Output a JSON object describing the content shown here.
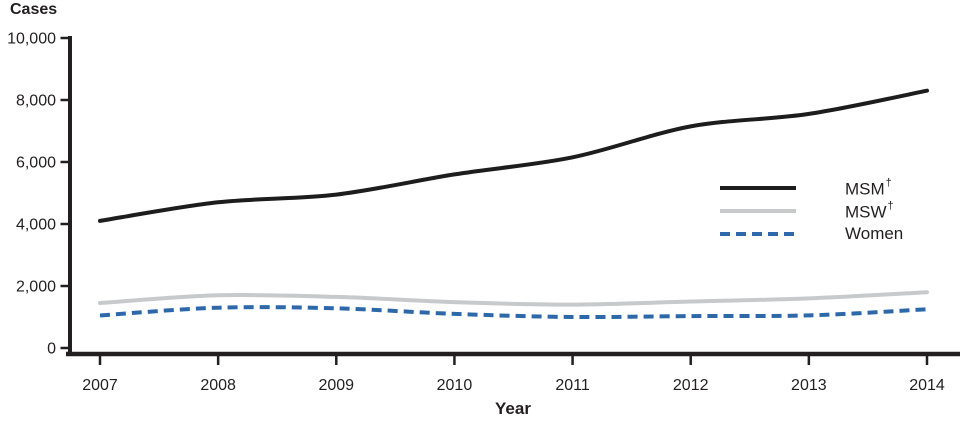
{
  "colors": {
    "axis": "#231f20",
    "text": "#231f20",
    "msm_line": "#1d1d1d",
    "msw_line": "#c8c9cb",
    "women_line": "#2d69aa"
  },
  "chart_data": {
    "type": "line",
    "title": "",
    "xlabel": "Year",
    "ylabel": "Cases",
    "categories": [
      "2007",
      "2008",
      "2009",
      "2010",
      "2011",
      "2012",
      "2013",
      "2014"
    ],
    "ylim": [
      0,
      10000
    ],
    "grid": false,
    "legend_position": "right-middle",
    "yticks": [
      {
        "value": 0,
        "label": "0"
      },
      {
        "value": 2000,
        "label": "2,000"
      },
      {
        "value": 4000,
        "label": "4,000"
      },
      {
        "value": 6000,
        "label": "6,000"
      },
      {
        "value": 8000,
        "label": "8,000"
      },
      {
        "value": 10000,
        "label": "10,000"
      }
    ],
    "series": [
      {
        "key": "msm",
        "label": "MSM",
        "superscript": "†",
        "line_style": "solid",
        "color": "#1d1d1d",
        "values": [
          4100,
          4700,
          4950,
          5600,
          6150,
          7150,
          7550,
          8300
        ]
      },
      {
        "key": "msw",
        "label": "MSW",
        "superscript": "†",
        "line_style": "solid",
        "color": "#c8c9cb",
        "values": [
          1450,
          1700,
          1650,
          1480,
          1400,
          1500,
          1600,
          1800
        ]
      },
      {
        "key": "women",
        "label": "Women",
        "superscript": "",
        "line_style": "dashed",
        "color": "#2d69aa",
        "values": [
          1050,
          1300,
          1280,
          1100,
          1000,
          1030,
          1050,
          1250
        ]
      }
    ]
  }
}
